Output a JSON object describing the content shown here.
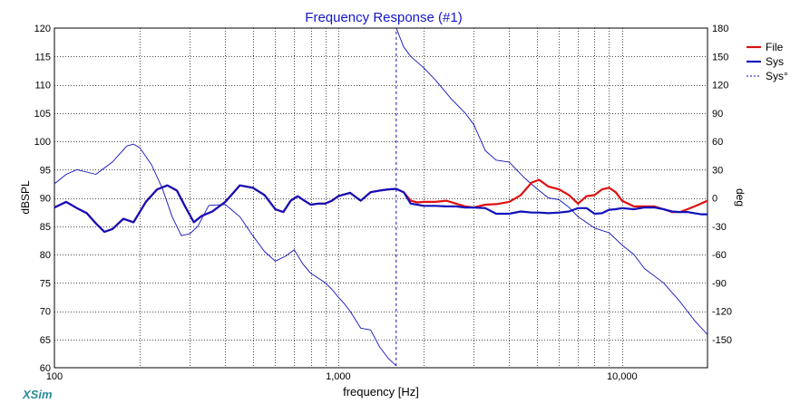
{
  "app_label": "XSim",
  "chart_data": {
    "type": "line",
    "title": "Frequency Response (#1)",
    "xlabel": "frequency [Hz]",
    "ylabel_left": "dBSPL",
    "ylabel_right": "deg",
    "x_scale": "log",
    "xlim": [
      100,
      20000
    ],
    "ylim_left": [
      60,
      120
    ],
    "ylim_right": [
      -180,
      180
    ],
    "x_tick_labels": [
      {
        "value": 100,
        "label": "100"
      },
      {
        "value": 1000,
        "label": "1,000"
      },
      {
        "value": 10000,
        "label": "10,000"
      }
    ],
    "y_left_ticks": [
      120,
      115,
      110,
      105,
      100,
      95,
      90,
      85,
      80,
      75,
      70,
      65,
      60
    ],
    "y_right_ticks": [
      180,
      150,
      120,
      90,
      60,
      30,
      0,
      -30,
      -60,
      -90,
      -120,
      -150
    ],
    "grid": true,
    "legend_position": "top-right",
    "colors": {
      "file": "#dd1111",
      "sys": "#1111bb",
      "phase": "#1111bb",
      "title": "#1515cc",
      "grid": "#222222"
    },
    "series": [
      {
        "name": "File",
        "axis": "left",
        "style": "solid",
        "x": [
          100,
          110,
          120,
          130,
          140,
          150,
          160,
          175,
          190,
          210,
          230,
          250,
          270,
          290,
          310,
          330,
          360,
          400,
          450,
          500,
          550,
          600,
          640,
          680,
          720,
          760,
          800,
          850,
          900,
          950,
          1000,
          1100,
          1200,
          1300,
          1400,
          1500,
          1600,
          1700,
          1800,
          1900,
          2000,
          2200,
          2400,
          2600,
          2800,
          3000,
          3300,
          3600,
          4000,
          4400,
          4800,
          5100,
          5500,
          6000,
          6500,
          7000,
          7500,
          8000,
          8500,
          9000,
          9500,
          10000,
          11000,
          12000,
          13000,
          14000,
          15000,
          16000,
          17000,
          18000,
          19000,
          20000
        ],
        "values": [
          88.3,
          89.3,
          88.2,
          87.3,
          85.5,
          84.0,
          84.5,
          86.3,
          85.7,
          89.3,
          91.5,
          92.2,
          91.3,
          88.3,
          85.7,
          86.8,
          87.6,
          89.3,
          92.2,
          91.8,
          90.5,
          88.0,
          87.5,
          89.5,
          90.3,
          89.5,
          88.8,
          89.0,
          89.0,
          89.5,
          90.3,
          90.9,
          89.5,
          91.0,
          91.3,
          91.5,
          91.6,
          91.0,
          89.5,
          89.2,
          89.3,
          89.3,
          89.5,
          89.0,
          88.5,
          88.3,
          88.8,
          88.9,
          89.3,
          90.5,
          92.7,
          93.2,
          92.0,
          91.5,
          90.5,
          89.0,
          90.3,
          90.5,
          91.5,
          91.8,
          91.0,
          89.5,
          88.5,
          88.5,
          88.5,
          88.0,
          87.5,
          87.5,
          88.0,
          88.5,
          89.0,
          89.5
        ]
      },
      {
        "name": "Sys",
        "axis": "left",
        "style": "solid",
        "x": [
          100,
          110,
          120,
          130,
          140,
          150,
          160,
          175,
          190,
          210,
          230,
          250,
          270,
          290,
          310,
          330,
          360,
          400,
          450,
          500,
          550,
          600,
          640,
          680,
          720,
          760,
          800,
          850,
          900,
          950,
          1000,
          1100,
          1200,
          1300,
          1400,
          1500,
          1600,
          1700,
          1800,
          1900,
          2000,
          2200,
          2400,
          2600,
          2800,
          3000,
          3300,
          3600,
          4000,
          4400,
          4800,
          5100,
          5500,
          6000,
          6500,
          7000,
          7500,
          8000,
          8500,
          9000,
          9500,
          10000,
          11000,
          12000,
          13000,
          14000,
          15000,
          16000,
          17000,
          18000,
          19000,
          20000
        ],
        "values": [
          88.3,
          89.3,
          88.2,
          87.3,
          85.5,
          84.0,
          84.5,
          86.3,
          85.7,
          89.3,
          91.5,
          92.2,
          91.3,
          88.3,
          85.7,
          86.8,
          87.6,
          89.3,
          92.2,
          91.8,
          90.5,
          88.0,
          87.5,
          89.5,
          90.3,
          89.5,
          88.8,
          89.0,
          89.0,
          89.5,
          90.3,
          90.9,
          89.5,
          91.0,
          91.3,
          91.5,
          91.6,
          91.0,
          89.0,
          88.8,
          88.6,
          88.6,
          88.5,
          88.5,
          88.3,
          88.3,
          88.2,
          87.2,
          87.2,
          87.6,
          87.4,
          87.4,
          87.3,
          87.4,
          87.6,
          88.2,
          88.2,
          87.2,
          87.3,
          87.9,
          88.0,
          88.2,
          88.0,
          88.3,
          88.3,
          88.0,
          87.6,
          87.5,
          87.5,
          87.3,
          87.1,
          87.1
        ]
      },
      {
        "name": "Sys°",
        "axis": "right",
        "style": "dashed-legend",
        "x": [
          100,
          110,
          120,
          140,
          160,
          180,
          190,
          200,
          220,
          240,
          260,
          280,
          300,
          320,
          350,
          400,
          450,
          500,
          550,
          600,
          650,
          700,
          750,
          800,
          850,
          900,
          950,
          1000,
          1050,
          1100,
          1200,
          1300,
          1400,
          1500,
          1600,
          1601,
          1700,
          1800,
          2000,
          2200,
          2500,
          2800,
          3000,
          3300,
          3600,
          4000,
          4500,
          5000,
          5500,
          6000,
          6500,
          7000,
          8000,
          9000,
          10000,
          11000,
          12000,
          14000,
          16000,
          18000,
          20000
        ],
        "values": [
          15,
          25,
          30,
          25,
          38,
          55,
          57,
          53,
          35,
          10,
          -20,
          -40,
          -38,
          -30,
          -8,
          -7,
          -20,
          -40,
          -57,
          -67,
          -62,
          -55,
          -70,
          -80,
          -85,
          -90,
          -97,
          -105,
          -112,
          -120,
          -138,
          -140,
          -158,
          -170,
          -178,
          180,
          160,
          150,
          138,
          125,
          105,
          90,
          78,
          50,
          40,
          38,
          22,
          10,
          0,
          -2,
          -10,
          -20,
          -32,
          -37,
          -50,
          -60,
          -75,
          -90,
          -110,
          -130,
          -145
        ]
      }
    ]
  }
}
